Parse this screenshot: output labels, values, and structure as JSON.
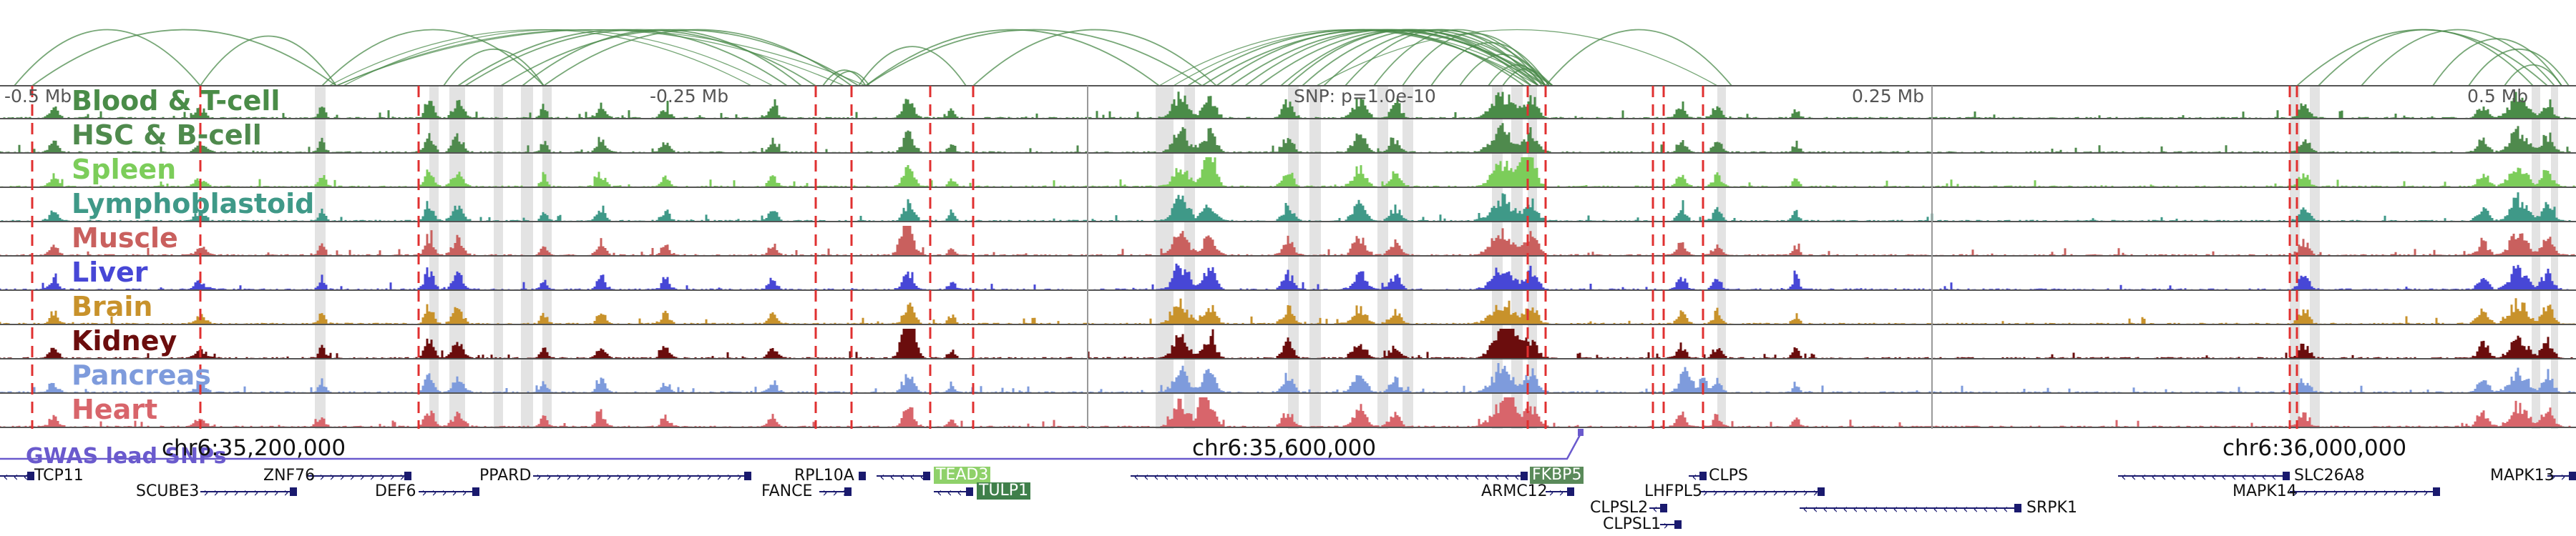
{
  "browser": {
    "scale": {
      "left": "-0.5 Mb",
      "mid_left": "-0.25 Mb",
      "center": "SNP: p=1.0e-10",
      "mid_right": "0.25 Mb",
      "right": "0.5 Mb"
    },
    "coordinates": [
      "chr6:35,200,000",
      "chr6:35,600,000",
      "chr6:36,000,000"
    ],
    "gwas_track_label": "GWAS lead SNPs",
    "tracks": [
      {
        "name": "Blood & T-cell",
        "color": "#4a8c48"
      },
      {
        "name": "HSC & B-cell",
        "color": "#4f8a4d"
      },
      {
        "name": "Spleen",
        "color": "#7ccd5a"
      },
      {
        "name": "Lymphoblastoid",
        "color": "#3f9988"
      },
      {
        "name": "Muscle",
        "color": "#c9605e"
      },
      {
        "name": "Liver",
        "color": "#4747d6"
      },
      {
        "name": "Brain",
        "color": "#c8922b"
      },
      {
        "name": "Kidney",
        "color": "#6b0d0d"
      },
      {
        "name": "Pancreas",
        "color": "#7e9bdc"
      },
      {
        "name": "Heart",
        "color": "#d8656b"
      }
    ],
    "genes": [
      {
        "name": "TCP11",
        "row": 1,
        "strand": "-"
      },
      {
        "name": "ZNF76",
        "row": 1,
        "strand": "+"
      },
      {
        "name": "SCUBE3",
        "row": 2,
        "strand": "+"
      },
      {
        "name": "DEF6",
        "row": 2,
        "strand": "+"
      },
      {
        "name": "PPARD",
        "row": 1,
        "strand": "+"
      },
      {
        "name": "RPL10A",
        "row": 1,
        "strand": "+"
      },
      {
        "name": "FANCE",
        "row": 2,
        "strand": "+"
      },
      {
        "name": "TEAD3",
        "row": 1,
        "strand": "-",
        "highlight": "#8fd16a"
      },
      {
        "name": "TULP1",
        "row": 2,
        "strand": "-",
        "highlight": "#3f7f4a"
      },
      {
        "name": "FKBP5",
        "row": 1,
        "strand": "-",
        "highlight": "#5a8a5a"
      },
      {
        "name": "ARMC12",
        "row": 2,
        "strand": "+"
      },
      {
        "name": "CLPS",
        "row": 1,
        "strand": "-"
      },
      {
        "name": "LHFPL5",
        "row": 2,
        "strand": "+"
      },
      {
        "name": "CLPSL2",
        "row": 3,
        "strand": "-"
      },
      {
        "name": "CLPSL1",
        "row": 4,
        "strand": "+"
      },
      {
        "name": "SRPK1",
        "row": 3,
        "strand": "-"
      },
      {
        "name": "SLC26A8",
        "row": 1,
        "strand": "-"
      },
      {
        "name": "MAPK14",
        "row": 2,
        "strand": "+"
      },
      {
        "name": "MAPK13",
        "row": 1,
        "strand": "+"
      }
    ],
    "colors": {
      "arc": "#4a8a4a",
      "eqtl_line": "#e03030",
      "gwas": "#6a5acd",
      "gene": "#1a1a6e",
      "frame": "#444444"
    }
  }
}
